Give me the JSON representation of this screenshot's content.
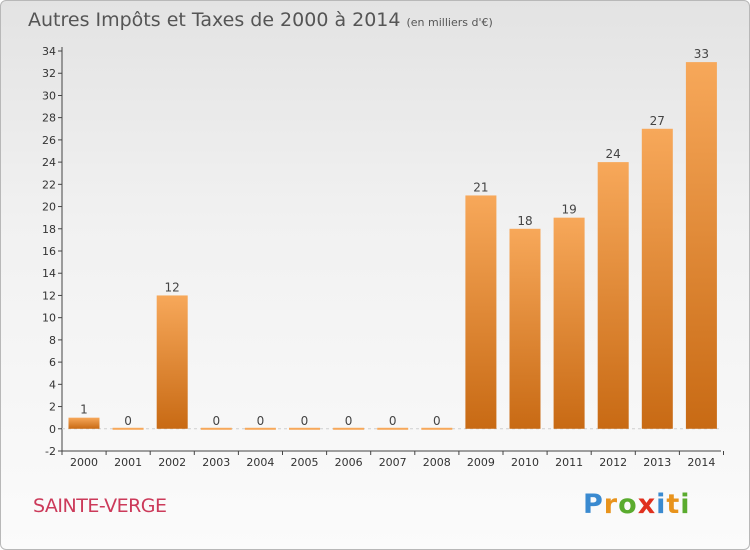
{
  "header": {
    "title": "Autres Impôts et Taxes de 2000 à 2014",
    "unit": "(en milliers d'€)"
  },
  "footer": {
    "commune": "SAINTE-VERGE",
    "logo": "Proxiti"
  },
  "colors": {
    "bar_top": "#f7a85a",
    "bar_bottom": "#c86a14",
    "axis": "#444444",
    "grid_dash": "#cfcfcf"
  },
  "chart_data": {
    "type": "bar",
    "categories": [
      "2000",
      "2001",
      "2002",
      "2003",
      "2004",
      "2005",
      "2006",
      "2007",
      "2008",
      "2009",
      "2010",
      "2011",
      "2012",
      "2013",
      "2014"
    ],
    "values": [
      1,
      0,
      12,
      0,
      0,
      0,
      0,
      0,
      0,
      21,
      18,
      19,
      24,
      27,
      33
    ],
    "value_labels": [
      "1",
      "0",
      "12",
      "0",
      "0",
      "0",
      "0",
      "0",
      "0",
      "21",
      "18",
      "19",
      "24",
      "27",
      "33"
    ],
    "title": "Autres Impôts et Taxes de 2000 à 2014",
    "ylim": [
      -2,
      34
    ],
    "yticks": [
      -2,
      0,
      2,
      4,
      6,
      8,
      10,
      12,
      14,
      16,
      18,
      20,
      22,
      24,
      26,
      28,
      30,
      32,
      34
    ],
    "grid": false
  }
}
